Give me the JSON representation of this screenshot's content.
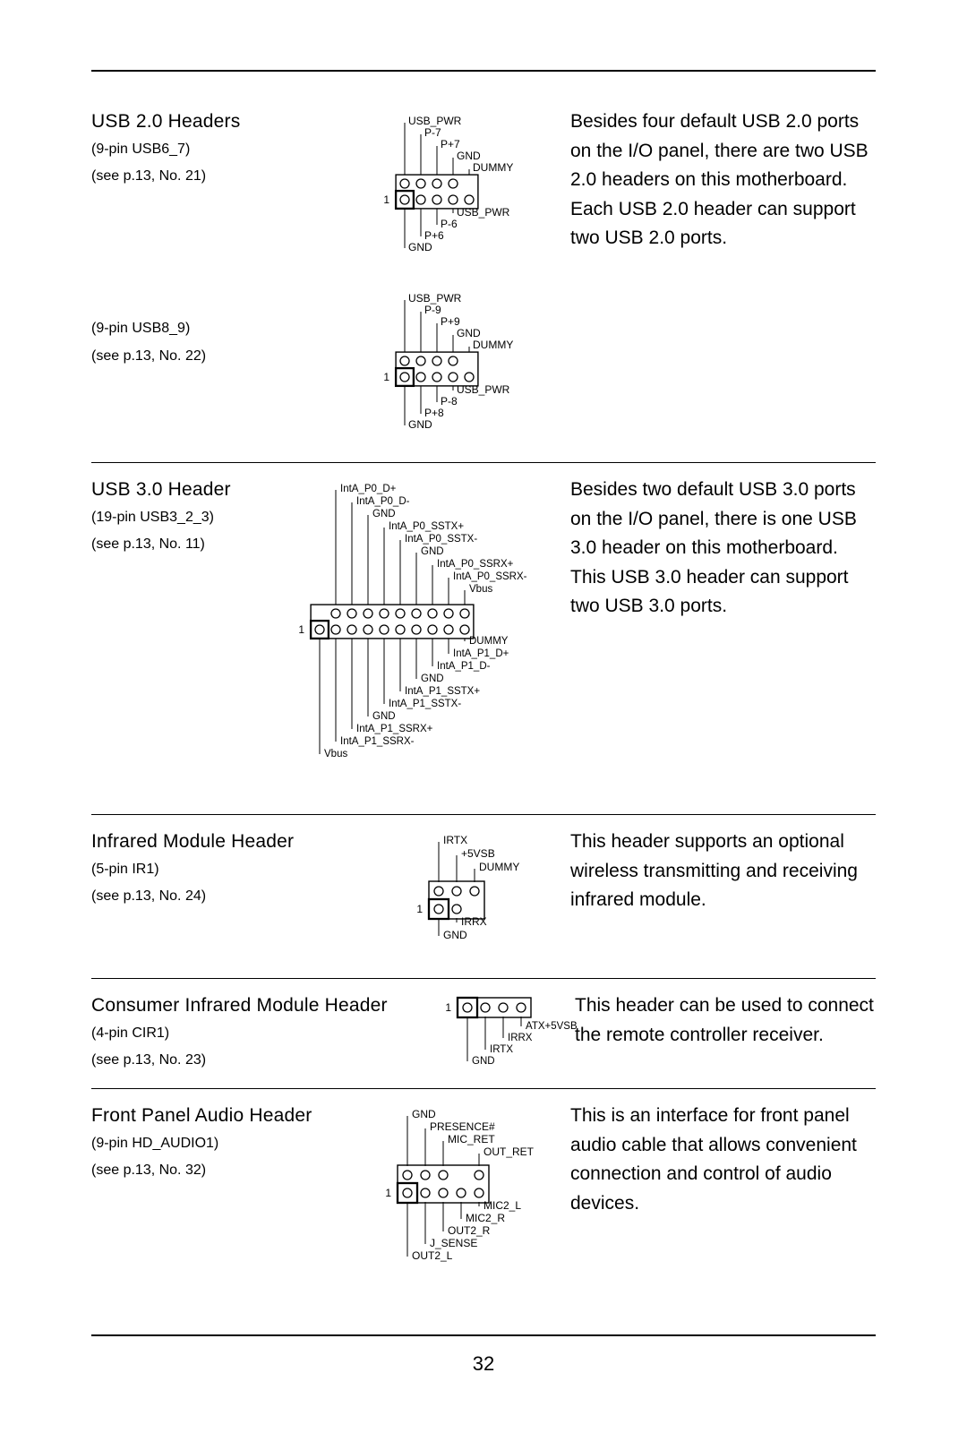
{
  "page_number": "32",
  "diagram_style": {
    "pin_radius": 5,
    "pin_stroke": "#000000",
    "header_stroke": "#000000",
    "pin_fill": "none",
    "box_stroke_width": 1.4,
    "label_font_size": 12,
    "label_font_size_small": 11,
    "label_color": "#000000"
  },
  "sections": [
    {
      "key": "usb2",
      "title": "USB 2.0 Headers",
      "subs": [
        "(9-pin USB6_7)",
        "(see p.13,  No. 21)"
      ],
      "subs2": [
        "(9-pin USB8_9)",
        "(see p.13,  No. 22)"
      ],
      "desc": "Besides four default USB 2.0 ports on the I/O panel, there are two USB 2.0 headers on this motherboard. Each USB 2.0 header can support two USB 2.0 ports.",
      "diagram1": {
        "top_labels": [
          "USB_PWR",
          "P-7",
          "P+7",
          "GND",
          "DUMMY"
        ],
        "bottom_labels": [
          "USB_PWR",
          "P-6",
          "P+6",
          "GND"
        ],
        "cols": 5,
        "rows": 2,
        "missing": [
          [
            0,
            4
          ]
        ]
      },
      "diagram2": {
        "top_labels": [
          "USB_PWR",
          "P-9",
          "P+9",
          "GND",
          "DUMMY"
        ],
        "bottom_labels": [
          "USB_PWR",
          "P-8",
          "P+8",
          "GND"
        ],
        "cols": 5,
        "rows": 2,
        "missing": [
          [
            0,
            4
          ]
        ]
      }
    },
    {
      "key": "usb3",
      "title": "USB 3.0 Header",
      "subs": [
        "(19-pin USB3_2_3)",
        "(see p.13,  No. 11)"
      ],
      "desc": "Besides two default USB 3.0 ports on the I/O panel, there is one USB 3.0 header on this motherboard. This USB 3.0 header can support two USB 3.0 ports.",
      "diagram": {
        "top_labels": [
          "IntA_P0_D+",
          "IntA_P0_D-",
          "GND",
          "IntA_P0_SSTX+",
          "IntA_P0_SSTX-",
          "GND",
          "IntA_P0_SSRX+",
          "IntA_P0_SSRX-",
          "Vbus"
        ],
        "bottom_labels": [
          "DUMMY",
          "IntA_P1_D+",
          "IntA_P1_D-",
          "GND",
          "IntA_P1_SSTX+",
          "IntA_P1_SSTX-",
          "GND",
          "IntA_P1_SSRX+",
          "IntA_P1_SSRX-",
          "Vbus"
        ],
        "cols": 10,
        "rows": 2,
        "missing": [
          [
            0,
            0
          ]
        ]
      }
    },
    {
      "key": "ir",
      "title": "Infrared Module Header",
      "subs": [
        "(5-pin IR1)",
        "(see p.13,  No. 24)"
      ],
      "desc": "This header supports an optional wireless transmitting and receiving infrared module.",
      "diagram": {
        "top_labels": [
          "IRTX",
          "+5VSB",
          "DUMMY"
        ],
        "bottom_labels": [
          "IRRX",
          "GND"
        ],
        "cols": 3,
        "rows": 2,
        "missing": [
          [
            1,
            2
          ]
        ]
      }
    },
    {
      "key": "cir",
      "title": "Consumer Infrared Module Header",
      "subs": [
        "(4-pin CIR1)",
        "(see p.13,  No. 23)"
      ],
      "desc": "This header can be used to connect the remote controller receiver.",
      "diagram": {
        "top_labels": [],
        "bottom_labels": [
          "ATX+5VSB",
          "IRRX",
          "IRTX",
          "GND"
        ],
        "cols": 4,
        "rows": 1,
        "missing": []
      }
    },
    {
      "key": "audio",
      "title": "Front Panel Audio Header",
      "subs": [
        "(9-pin HD_AUDIO1)",
        "(see p.13,  No. 32)"
      ],
      "desc": "This is an interface for front panel audio cable that allows convenient connection and control of audio devices.",
      "diagram": {
        "top_labels": [
          "GND",
          "PRESENCE#",
          "MIC_RET",
          "OUT_RET"
        ],
        "bottom_labels": [
          "MIC2_L",
          "MIC2_R",
          "OUT2_R",
          "J_SENSE",
          "OUT2_L"
        ],
        "cols": 5,
        "rows": 2,
        "missing": [
          [
            0,
            3
          ]
        ]
      }
    }
  ]
}
